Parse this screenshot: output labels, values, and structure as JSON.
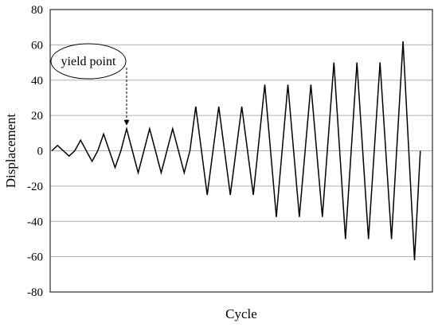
{
  "chart_data": {
    "type": "line",
    "title": "",
    "xlabel": "Cycle",
    "ylabel": "Displacement",
    "ylim": [
      -80,
      80
    ],
    "yticks": [
      80,
      60,
      40,
      20,
      0,
      -20,
      -40,
      -60,
      -80
    ],
    "grid": "horizontal",
    "series": [
      {
        "color": "#000000",
        "points": [
          [
            0,
            0
          ],
          [
            1,
            3
          ],
          [
            2,
            0
          ],
          [
            3,
            -3
          ],
          [
            4,
            0
          ],
          [
            5,
            6
          ],
          [
            6,
            0
          ],
          [
            7,
            -6
          ],
          [
            8,
            0
          ],
          [
            9,
            9.5
          ],
          [
            10,
            0
          ],
          [
            11,
            -9.5
          ],
          [
            12,
            0
          ],
          [
            13,
            12.5
          ],
          [
            14,
            0
          ],
          [
            15,
            -12.5
          ],
          [
            16,
            0
          ],
          [
            17,
            12.5
          ],
          [
            18,
            0
          ],
          [
            19,
            -12.5
          ],
          [
            20,
            0
          ],
          [
            21,
            12.5
          ],
          [
            22,
            0
          ],
          [
            23,
            -12.5
          ],
          [
            24,
            0
          ],
          [
            25,
            25
          ],
          [
            27,
            -25
          ],
          [
            29,
            25
          ],
          [
            31,
            -25
          ],
          [
            33,
            25
          ],
          [
            35,
            -25
          ],
          [
            37,
            37.5
          ],
          [
            39,
            -37.5
          ],
          [
            41,
            37.5
          ],
          [
            43,
            -37.5
          ],
          [
            45,
            37.5
          ],
          [
            47,
            -37.5
          ],
          [
            49,
            50
          ],
          [
            51,
            -50
          ],
          [
            53,
            50
          ],
          [
            55,
            -50
          ],
          [
            57,
            50
          ],
          [
            59,
            -50
          ],
          [
            61,
            62
          ],
          [
            63,
            -62
          ],
          [
            64,
            0
          ]
        ]
      }
    ],
    "xlim": [
      0,
      65
    ],
    "annotations": [
      {
        "text": "yield point",
        "x": 13,
        "y": 12.5
      }
    ]
  }
}
